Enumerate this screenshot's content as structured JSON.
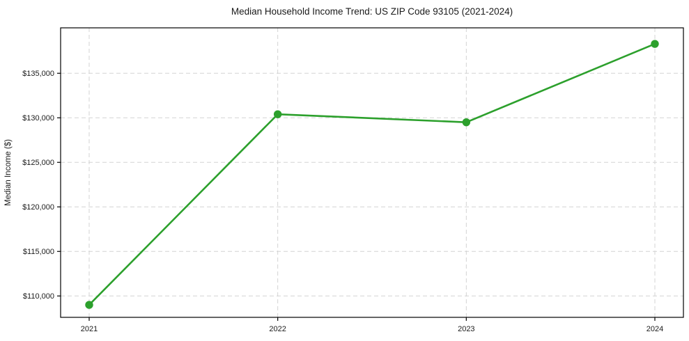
{
  "title": "Median Household Income Trend: US ZIP Code 93105 (2021-2024)",
  "chart_data": {
    "type": "line",
    "categories": [
      "2021",
      "2022",
      "2023",
      "2024"
    ],
    "series": [
      {
        "name": "Median Household Income",
        "values": [
          109000,
          130400,
          129500,
          138300
        ]
      }
    ],
    "xlabel": "",
    "ylabel": "Median Income ($)",
    "ylim": [
      107600,
      140100
    ],
    "yticks": [
      110000,
      115000,
      120000,
      125000,
      130000,
      135000
    ],
    "ytick_labels": [
      "$110,000",
      "$115,000",
      "$120,000",
      "$125,000",
      "$130,000",
      "$135,000"
    ],
    "grid": "dashed",
    "legend_position": "none",
    "line_color": "#2ca02c",
    "marker": "circle",
    "grid_color": "#d3d3d3",
    "axis_color": "#000000",
    "background_color": "#ffffff"
  }
}
